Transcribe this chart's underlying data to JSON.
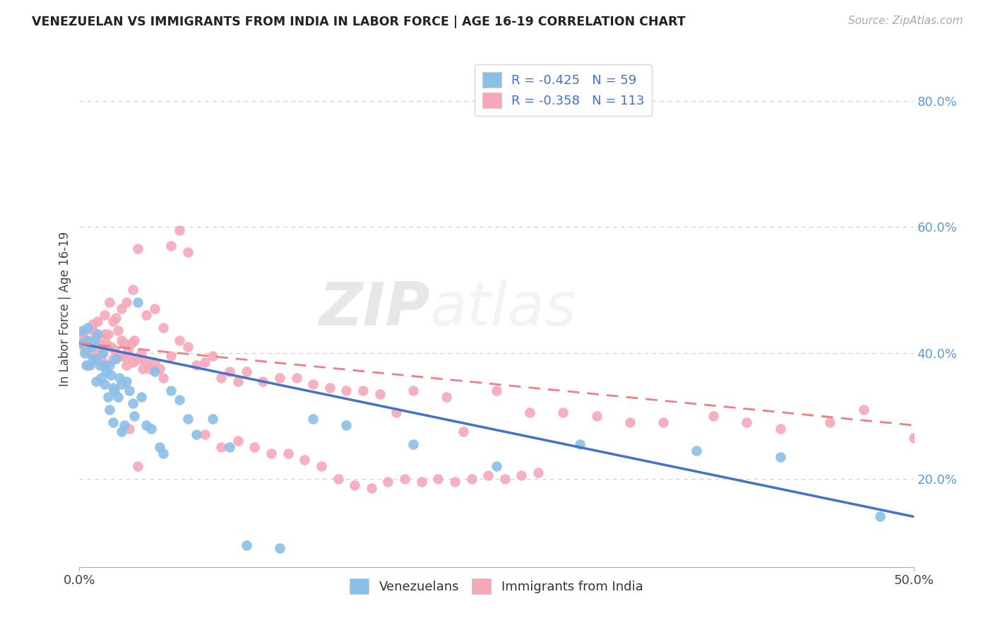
{
  "title": "VENEZUELAN VS IMMIGRANTS FROM INDIA IN LABOR FORCE | AGE 16-19 CORRELATION CHART",
  "source": "Source: ZipAtlas.com",
  "ylabel": "In Labor Force | Age 16-19",
  "ytick_labels": [
    "20.0%",
    "40.0%",
    "60.0%",
    "80.0%"
  ],
  "ytick_values": [
    0.2,
    0.4,
    0.6,
    0.8
  ],
  "xmin": 0.0,
  "xmax": 0.5,
  "ymin": 0.06,
  "ymax": 0.88,
  "legend1_label": "R = -0.425   N = 59",
  "legend2_label": "R = -0.358   N = 113",
  "legend_bottom1": "Venezuelans",
  "legend_bottom2": "Immigrants from India",
  "color_blue": "#8bbfe8",
  "color_pink": "#f5a8b8",
  "color_blue_line": "#4472c4",
  "color_pink_line": "#f08080",
  "watermark_zip": "ZIP",
  "watermark_atlas": "atlas",
  "venezuelan_x": [
    0.001,
    0.002,
    0.003,
    0.004,
    0.005,
    0.005,
    0.006,
    0.007,
    0.008,
    0.009,
    0.01,
    0.01,
    0.011,
    0.012,
    0.013,
    0.014,
    0.015,
    0.015,
    0.016,
    0.017,
    0.018,
    0.018,
    0.019,
    0.02,
    0.02,
    0.021,
    0.022,
    0.023,
    0.024,
    0.025,
    0.025,
    0.027,
    0.028,
    0.03,
    0.032,
    0.033,
    0.035,
    0.037,
    0.04,
    0.043,
    0.045,
    0.048,
    0.05,
    0.055,
    0.06,
    0.065,
    0.07,
    0.08,
    0.09,
    0.1,
    0.12,
    0.14,
    0.16,
    0.2,
    0.25,
    0.3,
    0.37,
    0.42,
    0.48
  ],
  "venezuelan_y": [
    0.415,
    0.435,
    0.4,
    0.38,
    0.42,
    0.44,
    0.38,
    0.41,
    0.39,
    0.42,
    0.39,
    0.355,
    0.43,
    0.38,
    0.36,
    0.4,
    0.38,
    0.35,
    0.37,
    0.33,
    0.38,
    0.31,
    0.365,
    0.345,
    0.29,
    0.34,
    0.39,
    0.33,
    0.36,
    0.35,
    0.275,
    0.285,
    0.355,
    0.34,
    0.32,
    0.3,
    0.48,
    0.33,
    0.285,
    0.28,
    0.37,
    0.25,
    0.24,
    0.34,
    0.325,
    0.295,
    0.27,
    0.295,
    0.25,
    0.095,
    0.09,
    0.295,
    0.285,
    0.255,
    0.22,
    0.255,
    0.245,
    0.235,
    0.14
  ],
  "india_x": [
    0.001,
    0.002,
    0.003,
    0.004,
    0.005,
    0.005,
    0.006,
    0.007,
    0.008,
    0.008,
    0.009,
    0.01,
    0.01,
    0.011,
    0.012,
    0.013,
    0.014,
    0.015,
    0.015,
    0.016,
    0.017,
    0.018,
    0.019,
    0.02,
    0.02,
    0.021,
    0.022,
    0.023,
    0.024,
    0.025,
    0.026,
    0.027,
    0.028,
    0.029,
    0.03,
    0.031,
    0.032,
    0.033,
    0.035,
    0.037,
    0.038,
    0.04,
    0.042,
    0.045,
    0.048,
    0.05,
    0.055,
    0.06,
    0.065,
    0.07,
    0.075,
    0.08,
    0.085,
    0.09,
    0.095,
    0.1,
    0.11,
    0.12,
    0.13,
    0.14,
    0.15,
    0.16,
    0.17,
    0.18,
    0.19,
    0.2,
    0.22,
    0.23,
    0.25,
    0.27,
    0.29,
    0.31,
    0.33,
    0.35,
    0.38,
    0.4,
    0.42,
    0.45,
    0.47,
    0.5,
    0.035,
    0.04,
    0.045,
    0.05,
    0.055,
    0.06,
    0.065,
    0.028,
    0.032,
    0.025,
    0.03,
    0.035,
    0.075,
    0.085,
    0.095,
    0.105,
    0.115,
    0.125,
    0.135,
    0.145,
    0.155,
    0.165,
    0.175,
    0.185,
    0.195,
    0.205,
    0.215,
    0.225,
    0.235,
    0.245,
    0.255,
    0.265,
    0.275
  ],
  "india_y": [
    0.415,
    0.43,
    0.405,
    0.42,
    0.415,
    0.38,
    0.41,
    0.4,
    0.435,
    0.445,
    0.41,
    0.39,
    0.425,
    0.45,
    0.415,
    0.4,
    0.385,
    0.43,
    0.46,
    0.415,
    0.43,
    0.48,
    0.41,
    0.39,
    0.45,
    0.405,
    0.455,
    0.435,
    0.395,
    0.42,
    0.395,
    0.415,
    0.38,
    0.405,
    0.395,
    0.415,
    0.385,
    0.42,
    0.39,
    0.4,
    0.375,
    0.385,
    0.375,
    0.385,
    0.375,
    0.36,
    0.395,
    0.42,
    0.41,
    0.38,
    0.385,
    0.395,
    0.36,
    0.37,
    0.355,
    0.37,
    0.355,
    0.36,
    0.36,
    0.35,
    0.345,
    0.34,
    0.34,
    0.335,
    0.305,
    0.34,
    0.33,
    0.275,
    0.34,
    0.305,
    0.305,
    0.3,
    0.29,
    0.29,
    0.3,
    0.29,
    0.28,
    0.29,
    0.31,
    0.265,
    0.565,
    0.46,
    0.47,
    0.44,
    0.57,
    0.595,
    0.56,
    0.48,
    0.5,
    0.47,
    0.28,
    0.22,
    0.27,
    0.25,
    0.26,
    0.25,
    0.24,
    0.24,
    0.23,
    0.22,
    0.2,
    0.19,
    0.185,
    0.195,
    0.2,
    0.195,
    0.2,
    0.195,
    0.2,
    0.205,
    0.2,
    0.205,
    0.21
  ]
}
